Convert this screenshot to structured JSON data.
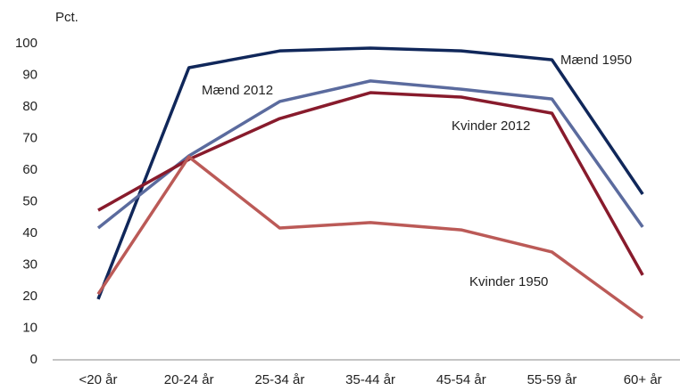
{
  "chart_data": {
    "type": "line",
    "y_label": "Pct.",
    "categories": [
      "<20 år",
      "20-24 år",
      "25-34 år",
      "35-44 år",
      "45-54 år",
      "55-59 år",
      "60+ år"
    ],
    "series": [
      {
        "name": "Mænd 1950",
        "color": "#10275a",
        "values": [
          19.2,
          92.4,
          97.7,
          98.6,
          97.7,
          94.9,
          52.4
        ]
      },
      {
        "name": "Mænd 2012",
        "color": "#5b6b9e",
        "values": [
          41.7,
          64.5,
          81.7,
          88.2,
          85.6,
          82.5,
          42
        ]
      },
      {
        "name": "Kvinder 2012",
        "color": "#881b2c",
        "values": [
          47.3,
          63.4,
          76.3,
          84.5,
          83.1,
          78,
          26.8
        ]
      },
      {
        "name": "Kvinder 1950",
        "color": "#bb5a57",
        "values": [
          20.8,
          64.2,
          41.7,
          43.4,
          41.1,
          34.1,
          13.2
        ]
      }
    ],
    "ylim": [
      0,
      100
    ],
    "yticks": [
      0,
      10,
      20,
      30,
      40,
      50,
      60,
      70,
      80,
      90,
      100
    ],
    "grid": false
  }
}
